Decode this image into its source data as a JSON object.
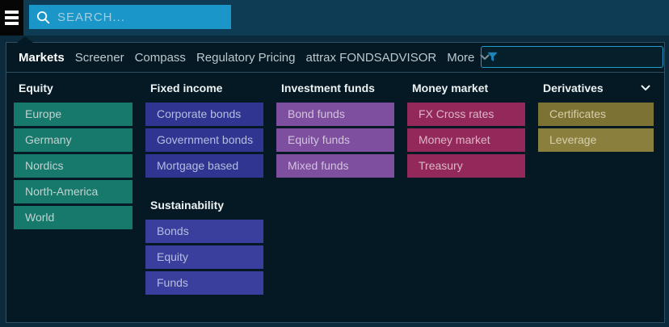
{
  "topbar": {
    "search_placeholder": "SEARCH..."
  },
  "tab_bar": {
    "tabs": [
      {
        "label": "Markets",
        "active": true
      },
      {
        "label": "Screener",
        "active": false
      },
      {
        "label": "Compass",
        "active": false
      },
      {
        "label": "Regulatory Pricing",
        "active": false
      },
      {
        "label": "attrax FONDSADVISOR",
        "active": false
      },
      {
        "label": "More",
        "active": false,
        "chevron": true
      }
    ],
    "filter_value": ""
  },
  "menu_sections": {
    "equity": {
      "header": "Equity",
      "button_bg": "#17786c",
      "button_text": "#c2d3d1",
      "items": [
        "Europe",
        "Germany",
        "Nordics",
        "North-America",
        "World"
      ]
    },
    "fixed_income": {
      "header": "Fixed income",
      "button_bg": "#2f3591",
      "button_text": "#b7bedf",
      "items": [
        "Corporate bonds",
        "Government bonds",
        "Mortgage based"
      ]
    },
    "sustainability": {
      "header": "Sustainability",
      "button_bg": "#3a3f9d",
      "button_text": "#b7bedf",
      "items": [
        "Bonds",
        "Equity",
        "Funds"
      ]
    },
    "investment_funds": {
      "header": "Investment funds",
      "button_bg": "#7d4f9e",
      "button_text": "#d3c3de",
      "items": [
        "Bond funds",
        "Equity funds",
        "Mixed funds"
      ]
    },
    "money_market": {
      "header": "Money market",
      "button_bg": "#93285a",
      "button_text": "#dcb7c6",
      "items": [
        "FX Cross rates",
        "Money market",
        "Treasury"
      ]
    },
    "derivatives": {
      "header": "Derivatives",
      "has_chevron": true,
      "button_bg": "#7c7233",
      "button_text": "#d6cfae",
      "items": [
        "Certificates",
        "Leverage"
      ],
      "item_bgs": [
        "#7c7233",
        "#8b7f3d"
      ]
    }
  },
  "colors": {
    "topbar_bg": "#0e3c55",
    "under_bg": "#0b2a3b",
    "menu_square_bg": "#060606",
    "search_bg": "#1a96c8",
    "search_placeholder_color": "#a6cddd",
    "panel_bg": "#041923",
    "panel_border": "#2d5064",
    "tab_active": "#ffffff",
    "tab_inactive": "#bdc8ce",
    "header_text": "#edf2f4",
    "filter_border": "#1f9ccd",
    "filter_icon": "#1d84bb"
  }
}
